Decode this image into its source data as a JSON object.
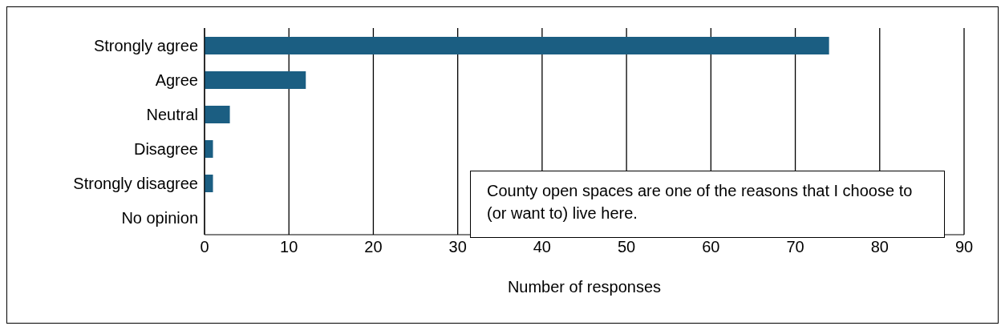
{
  "chart_data": {
    "type": "bar",
    "orientation": "horizontal",
    "xlabel": "Number of responses",
    "categories": [
      "Strongly agree",
      "Agree",
      "Neutral",
      "Disagree",
      "Strongly disagree",
      "No opinion"
    ],
    "values": [
      74,
      12,
      3,
      1,
      1,
      0
    ],
    "color": "#1b5e82",
    "xlim": [
      0,
      90
    ],
    "xticks": [
      0,
      10,
      20,
      30,
      40,
      50,
      60,
      70,
      80,
      90
    ],
    "grid": "x",
    "annotations": [
      "County open spaces are one of the reasons that I choose to (or want to) live here."
    ]
  }
}
